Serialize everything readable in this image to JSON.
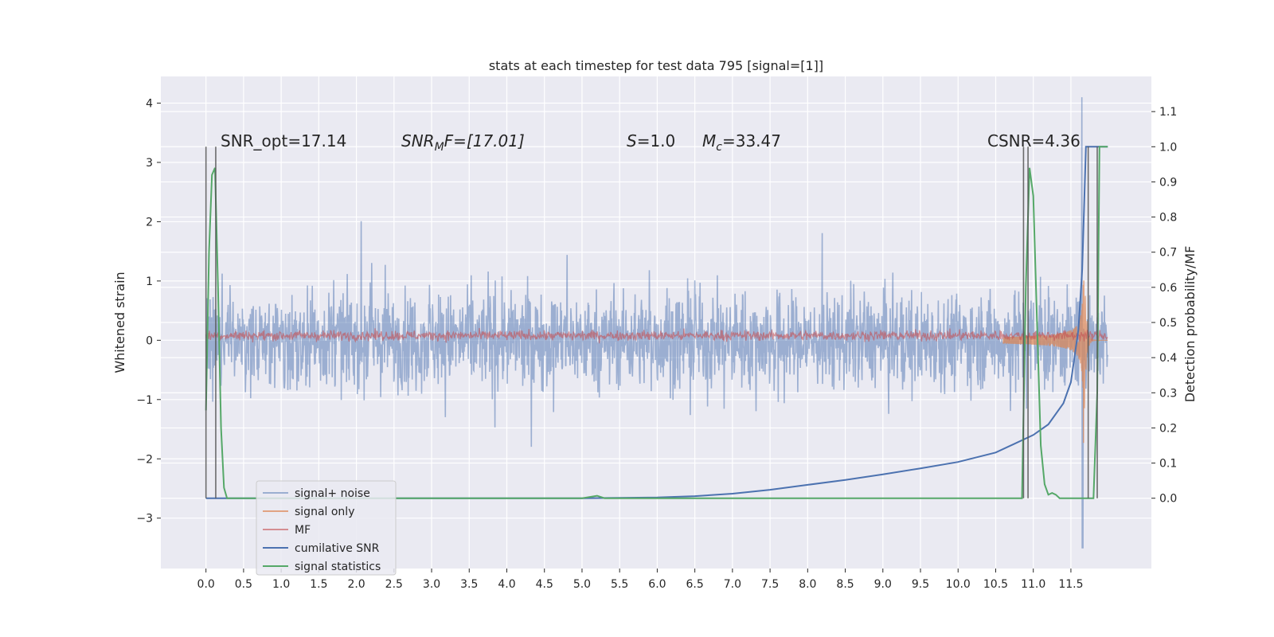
{
  "chart_data": {
    "type": "line",
    "title": "stats at each timestep for test data 795 [signal=[1]]",
    "ylabel_left": "Whitened strain",
    "ylabel_right": "Detection probability/MF",
    "xlabel": "",
    "x_range": [
      -0.6,
      12.57
    ],
    "ylim_left": [
      -3.85,
      4.45
    ],
    "ylim_right": [
      -0.2,
      1.2
    ],
    "x_ticks": [
      "0.0",
      "0.5",
      "1.0",
      "1.5",
      "2.0",
      "2.5",
      "3.0",
      "3.5",
      "4.0",
      "4.5",
      "5.0",
      "5.5",
      "6.0",
      "6.5",
      "7.0",
      "7.5",
      "8.0",
      "8.5",
      "9.0",
      "9.5",
      "10.0",
      "10.5",
      "11.0",
      "11.5"
    ],
    "x_tick_values": [
      0.0,
      0.5,
      1.0,
      1.5,
      2.0,
      2.5,
      3.0,
      3.5,
      4.0,
      4.5,
      5.0,
      5.5,
      6.0,
      6.5,
      7.0,
      7.5,
      8.0,
      8.5,
      9.0,
      9.5,
      10.0,
      10.5,
      11.0,
      11.5
    ],
    "y_left_ticks": [
      "4",
      "3",
      "2",
      "1",
      "0",
      "−1",
      "−2",
      "−3"
    ],
    "y_left_tick_values": [
      4,
      3,
      2,
      1,
      0,
      -1,
      -2,
      -3
    ],
    "y_right_ticks": [
      "1.1",
      "1.0",
      "0.9",
      "0.8",
      "0.7",
      "0.6",
      "0.5",
      "0.4",
      "0.3",
      "0.2",
      "0.1",
      "0.0"
    ],
    "y_right_tick_values": [
      1.1,
      1.0,
      0.9,
      0.8,
      0.7,
      0.6,
      0.5,
      0.4,
      0.3,
      0.2,
      0.1,
      0.0
    ],
    "grid": true,
    "legend_position": "lower-left",
    "annotations": {
      "snr_opt": "SNR_opt=17.14",
      "snr_mf": "SNR",
      "snr_mf_sub": "M",
      "snr_mf_rest": "F=[17.01]",
      "s_label": "S",
      "s_value": "=1.0",
      "mc_label": "M",
      "mc_sub": "c",
      "mc_value": "=33.47",
      "csnr": "CSNR=4.36"
    },
    "series": [
      {
        "name": "signal+ noise",
        "color": "#4c72b0",
        "alpha": 0.5,
        "axis": "left",
        "x_start": 0.0,
        "x_end": 11.99,
        "amplitude": 1.45,
        "burst_x": 11.65,
        "burst_max": 4.1,
        "burst_min": -3.5
      },
      {
        "name": "signal only",
        "color": "#dd8452",
        "alpha": 0.7,
        "axis": "left",
        "x_start": 10.6,
        "x_end": 11.99,
        "chirp_peak_x": 11.67,
        "chirp_max": 1.0,
        "chirp_min": -2.85
      },
      {
        "name": "MF",
        "color": "#c44e52",
        "alpha": 0.6,
        "axis": "left",
        "x_start": 0.0,
        "x_end": 11.99,
        "center": 0.08,
        "amplitude": 0.12
      },
      {
        "name": "cumilative SNR",
        "color": "#4c72b0",
        "axis": "right",
        "x": [
          0.0,
          0.5,
          1.0,
          2.0,
          3.0,
          4.0,
          5.0,
          5.5,
          6.0,
          6.5,
          7.0,
          7.5,
          8.0,
          8.5,
          9.0,
          9.5,
          10.0,
          10.5,
          11.0,
          11.2,
          11.4,
          11.5,
          11.6,
          11.65,
          11.7,
          11.75,
          11.99
        ],
        "y": [
          0.0,
          0.0,
          0.0,
          0.0,
          0.0,
          0.0,
          0.0,
          0.001,
          0.002,
          0.006,
          0.013,
          0.024,
          0.038,
          0.052,
          0.068,
          0.085,
          0.103,
          0.13,
          0.18,
          0.21,
          0.27,
          0.33,
          0.48,
          0.65,
          1.0,
          1.0,
          1.0
        ]
      },
      {
        "name": "signal statistics",
        "color": "#55a868",
        "axis": "right",
        "x": [
          0.0,
          0.04,
          0.08,
          0.12,
          0.16,
          0.2,
          0.24,
          0.28,
          0.32,
          0.5,
          5.0,
          5.2,
          5.3,
          5.5,
          10.85,
          10.9,
          10.95,
          11.0,
          11.05,
          11.1,
          11.15,
          11.2,
          11.25,
          11.3,
          11.35,
          11.4,
          11.5,
          11.65,
          11.8,
          11.85,
          11.88,
          11.99
        ],
        "y": [
          0.25,
          0.7,
          0.92,
          0.94,
          0.6,
          0.2,
          0.03,
          0.0,
          0.0,
          0.0,
          0.0,
          0.007,
          0.0,
          0.0,
          0.0,
          0.6,
          0.94,
          0.86,
          0.5,
          0.15,
          0.04,
          0.01,
          0.015,
          0.01,
          0.0,
          0.0,
          0.0,
          0.0,
          0.0,
          0.3,
          1.0,
          1.0
        ]
      }
    ],
    "vertical_markers": [
      0.0,
      0.13,
      10.87,
      10.93,
      11.73,
      11.85
    ]
  }
}
